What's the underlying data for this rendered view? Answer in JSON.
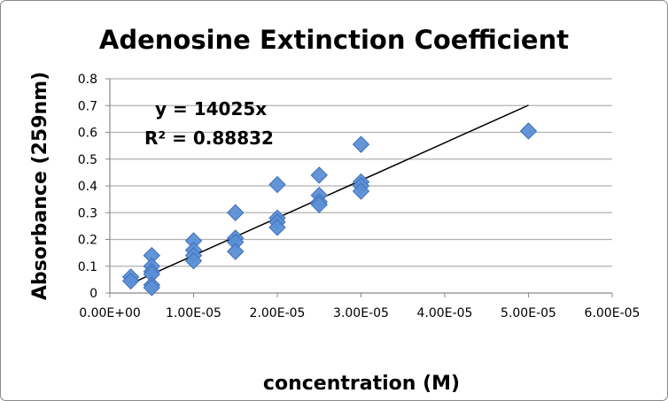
{
  "chart_data": {
    "type": "scatter",
    "title": "Adenosine Extinction Coefficient",
    "xlabel": "concentration (M)",
    "ylabel": "Absorbance (259nm)",
    "xlim": [
      0,
      6e-05
    ],
    "ylim": [
      0,
      0.8
    ],
    "xticks": [
      "0.00E+00",
      "1.00E-05",
      "2.00E-05",
      "3.00E-05",
      "4.00E-05",
      "5.00E-05",
      "6.00E-05"
    ],
    "yticks": [
      "0",
      "0.1",
      "0.2",
      "0.3",
      "0.4",
      "0.5",
      "0.6",
      "0.7",
      "0.8"
    ],
    "grid": "horizontal",
    "marker_color": "#5b8fd6",
    "points": [
      [
        2.5e-06,
        0.06
      ],
      [
        2.5e-06,
        0.045
      ],
      [
        5e-06,
        0.14
      ],
      [
        5e-06,
        0.1
      ],
      [
        5e-06,
        0.08
      ],
      [
        5e-06,
        0.07
      ],
      [
        5e-06,
        0.03
      ],
      [
        5e-06,
        0.02
      ],
      [
        1e-05,
        0.195
      ],
      [
        1e-05,
        0.16
      ],
      [
        1e-05,
        0.14
      ],
      [
        1e-05,
        0.12
      ],
      [
        1.5e-05,
        0.3
      ],
      [
        1.5e-05,
        0.205
      ],
      [
        1.5e-05,
        0.19
      ],
      [
        1.5e-05,
        0.155
      ],
      [
        2e-05,
        0.405
      ],
      [
        2e-05,
        0.28
      ],
      [
        2e-05,
        0.265
      ],
      [
        2e-05,
        0.245
      ],
      [
        2.5e-05,
        0.44
      ],
      [
        2.5e-05,
        0.365
      ],
      [
        2.5e-05,
        0.34
      ],
      [
        2.5e-05,
        0.33
      ],
      [
        3e-05,
        0.555
      ],
      [
        3e-05,
        0.415
      ],
      [
        3e-05,
        0.4
      ],
      [
        3e-05,
        0.38
      ],
      [
        5e-05,
        0.605
      ]
    ],
    "trendline": {
      "slope": 14025,
      "x_range": [
        2.5e-06,
        5e-05
      ],
      "equation": "y = 14025x",
      "r_squared": "R² = 0.88832"
    }
  }
}
